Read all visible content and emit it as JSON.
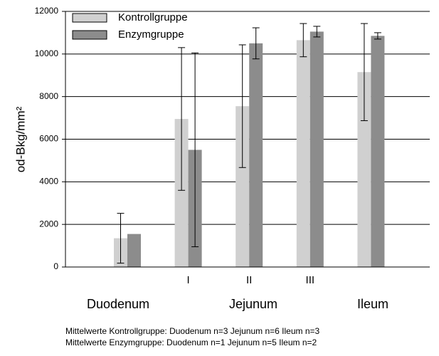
{
  "chart_data": {
    "type": "bar",
    "y_label": "od-Bkg/mm²",
    "categories": [
      null,
      "I",
      "II",
      "III",
      null
    ],
    "groups": [
      "Duodenum",
      "Jejunum",
      "Ileum"
    ],
    "series": [
      {
        "name": "Kontrollgruppe",
        "color": "#d0d0d0",
        "values": [
          1350,
          6950,
          7550,
          10650,
          9150
        ],
        "errors": [
          1170,
          3350,
          2880,
          780,
          2280
        ]
      },
      {
        "name": "Enzymgruppe",
        "color": "#8c8c8c",
        "values": [
          1550,
          5500,
          10500,
          11050,
          10850
        ],
        "errors": [
          null,
          4550,
          730,
          250,
          150
        ]
      }
    ],
    "ylim": [
      0,
      12000
    ],
    "yticks": [
      0,
      2000,
      4000,
      6000,
      8000,
      10000,
      12000
    ],
    "grid": true,
    "legend": "top-left",
    "notes": [
      "Mittelwerte Kontrollgruppe: Duodenum n=3  Jejunum n=6  Ileum n=3",
      "Mittelwerte Enzymgruppe: Duodenum n=1  Jejunum n=5  Ileum n=2"
    ]
  }
}
